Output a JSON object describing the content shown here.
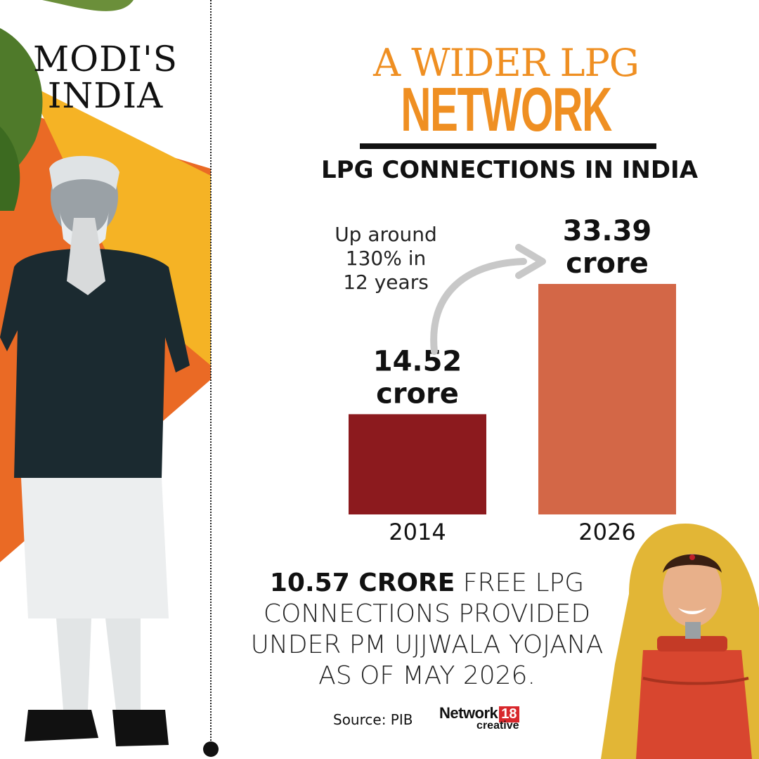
{
  "series_title": {
    "line1": "MODI'S",
    "line2": "INDIA"
  },
  "header": {
    "title_line1": "A WIDER LPG",
    "title_line2": "NETWORK",
    "subtitle": "LPG CONNECTIONS IN INDIA"
  },
  "chart_data": {
    "type": "bar",
    "title": "LPG CONNECTIONS IN INDIA",
    "categories": [
      "2014",
      "2026"
    ],
    "values": [
      14.52,
      33.39
    ],
    "unit": "crore",
    "data_labels": [
      "14.52",
      "33.39"
    ],
    "ylim": [
      0,
      33.39
    ],
    "grid": false,
    "bar_colors": [
      "#8c1a1e",
      "#d36747"
    ],
    "annotation": [
      "Up around",
      "130% in",
      "12 years"
    ]
  },
  "footer": {
    "highlight": "10.57 CRORE",
    "line1_rest": " FREE LPG",
    "line2": "CONNECTIONS PROVIDED",
    "line3": "UNDER PM UJJWALA YOJANA",
    "line4": "AS OF MAY 2026.",
    "source": "Source: PIB",
    "brand_name": "Network",
    "brand_number": "18",
    "brand_sub": "creative"
  },
  "colors": {
    "accent_orange": "#ef8f22",
    "dark_red": "#8c1a1e",
    "terracotta": "#d36747",
    "yellow": "#f5b325"
  },
  "icons": [
    "leaf-decoration",
    "person-photo",
    "woman-with-cylinder-illustration",
    "curved-arrow-icon"
  ]
}
